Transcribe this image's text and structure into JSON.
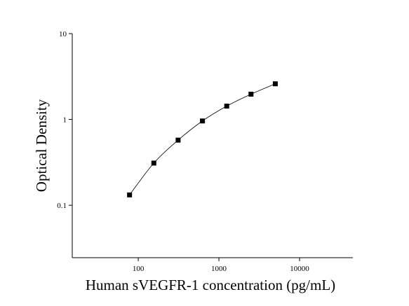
{
  "chart_data": {
    "type": "scatter",
    "x_label": "Human sVEGFR-1 concentration (pg/mL)",
    "y_label": "Optical Density",
    "x_scale": "log",
    "y_scale": "log",
    "xlim": [
      15.2,
      45800
    ],
    "ylim": [
      0.0245,
      10
    ],
    "xticks": [
      100,
      1000,
      10000
    ],
    "yticks": [
      0.1,
      1,
      10
    ],
    "color": "#000000",
    "fit_line": true,
    "x": [
      78,
      156,
      312,
      625,
      1250,
      2500,
      5000
    ],
    "values": [
      0.132,
      0.31,
      0.574,
      0.96,
      1.43,
      1.97,
      2.6
    ]
  }
}
